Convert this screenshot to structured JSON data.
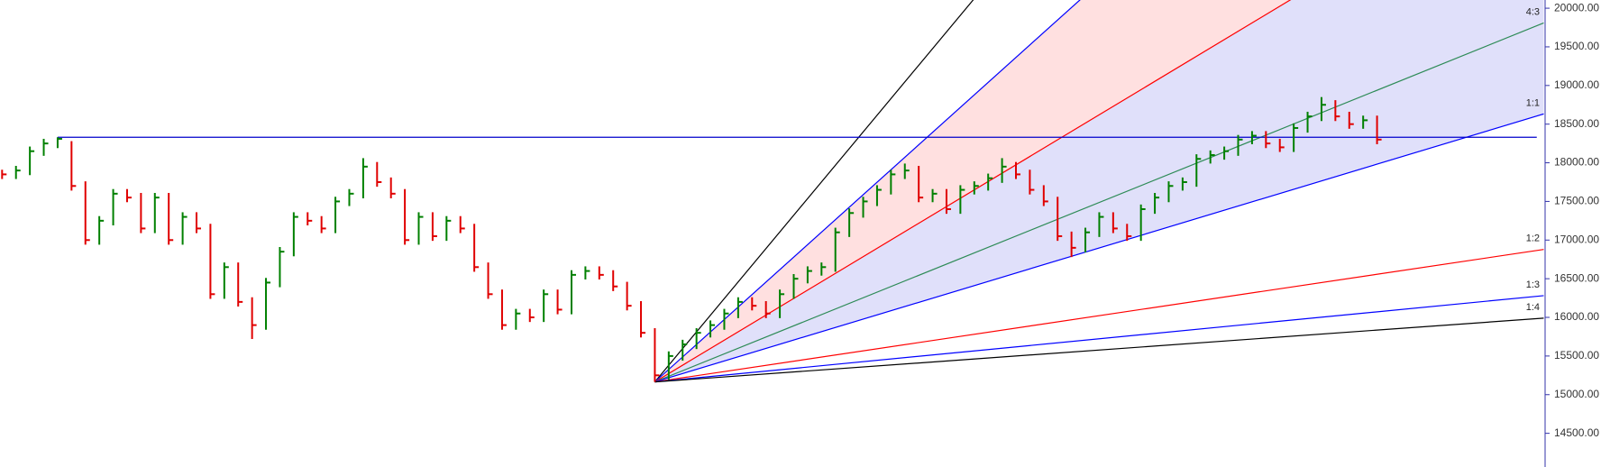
{
  "chart_data": {
    "type": "ohlc",
    "up_color": "#008000",
    "down_color": "#e00000",
    "xlim": [
      -0.15,
      111.1
    ],
    "ylim": [
      14064,
      20106
    ],
    "yticks": [
      {
        "value": 14500,
        "label": "14500.00"
      },
      {
        "value": 15000,
        "label": "15000.00"
      },
      {
        "value": 15500,
        "label": "15500.00"
      },
      {
        "value": 16000,
        "label": "16000.00"
      },
      {
        "value": 16500,
        "label": "16500.00"
      },
      {
        "value": 17000,
        "label": "17000.00"
      },
      {
        "value": 17500,
        "label": "17500.00"
      },
      {
        "value": 18000,
        "label": "18000.00"
      },
      {
        "value": 18500,
        "label": "18500.00"
      },
      {
        "value": 19000,
        "label": "19000.00"
      },
      {
        "value": 19500,
        "label": "19500.00"
      },
      {
        "value": 20000,
        "label": "20000.00"
      }
    ],
    "high": [
      17910,
      17960,
      18210,
      18310,
      18330,
      18280,
      17760,
      17310,
      17660,
      17660,
      17610,
      17610,
      17610,
      17360,
      17360,
      17210,
      16710,
      16710,
      16260,
      16510,
      16910,
      17360,
      17360,
      17310,
      17560,
      17660,
      18060,
      18010,
      17810,
      17660,
      17360,
      17360,
      17310,
      17310,
      17210,
      16710,
      16360,
      16110,
      16110,
      16360,
      16360,
      16610,
      16660,
      16660,
      16610,
      16460,
      16210,
      15860,
      15560,
      15710,
      15860,
      15960,
      16110,
      16260,
      16260,
      16210,
      16360,
      16560,
      16660,
      16710,
      17160,
      17410,
      17560,
      17710,
      17910,
      17990,
      17960,
      17660,
      17660,
      17710,
      17760,
      17860,
      18060,
      18010,
      17910,
      17710,
      17560,
      17110,
      17160,
      17360,
      17360,
      17210,
      17460,
      17610,
      17760,
      17810,
      18110,
      18160,
      18210,
      18360,
      18410,
      18410,
      18310,
      18510,
      18660,
      18850,
      18810,
      18660,
      18610,
      18610
    ],
    "low": [
      17790,
      17790,
      17840,
      18090,
      18190,
      17640,
      16940,
      16940,
      17190,
      17490,
      17090,
      17090,
      16940,
      16940,
      17090,
      16240,
      16240,
      16140,
      15720,
      15840,
      16390,
      16790,
      17190,
      17090,
      17090,
      17440,
      17540,
      17690,
      17540,
      16940,
      16940,
      16990,
      16990,
      17090,
      16590,
      16240,
      15840,
      15840,
      15940,
      15940,
      16040,
      16040,
      16490,
      16490,
      16340,
      16090,
      15740,
      15165,
      15190,
      15440,
      15590,
      15740,
      15840,
      15990,
      16090,
      15990,
      15990,
      16240,
      16440,
      16540,
      16590,
      17040,
      17290,
      17440,
      17590,
      17790,
      17490,
      17490,
      17340,
      17340,
      17590,
      17640,
      17740,
      17790,
      17590,
      17440,
      16990,
      16780,
      16840,
      17040,
      17090,
      16990,
      16990,
      17340,
      17490,
      17640,
      17690,
      17990,
      18040,
      18090,
      18240,
      18190,
      18140,
      18140,
      18390,
      18540,
      18540,
      18440,
      18440,
      18240
    ],
    "close": [
      17850,
      17900,
      18150,
      18250,
      18310,
      17700,
      17000,
      17250,
      17600,
      17550,
      17150,
      17550,
      17000,
      17300,
      17150,
      16300,
      16650,
      16200,
      15900,
      16450,
      16850,
      17300,
      17250,
      17150,
      17500,
      17600,
      17950,
      17750,
      17600,
      17000,
      17300,
      17050,
      17250,
      17150,
      16650,
      16300,
      15900,
      16050,
      16000,
      16300,
      16100,
      16550,
      16600,
      16550,
      16400,
      16150,
      15800,
      15250,
      15500,
      15650,
      15800,
      15900,
      16050,
      16200,
      16150,
      16050,
      16300,
      16500,
      16600,
      16650,
      17100,
      17350,
      17500,
      17650,
      17850,
      17900,
      17550,
      17600,
      17400,
      17650,
      17700,
      17800,
      17950,
      17850,
      17650,
      17500,
      17050,
      16900,
      17100,
      17300,
      17150,
      17050,
      17400,
      17550,
      17700,
      17750,
      18050,
      18100,
      18150,
      18300,
      18350,
      18250,
      18200,
      18450,
      18600,
      18750,
      18600,
      18500,
      18550,
      18300
    ],
    "horizontal_line": {
      "price": 18330,
      "start_index": 4,
      "end_index": 110.5,
      "color": "#0000cc"
    },
    "fan": {
      "origin": {
        "index": 47,
        "price": 15165
      },
      "end_index": 111,
      "fills": [
        "#ffe0e0",
        "#e0e0fa"
      ],
      "lines": [
        {
          "color": "#000000",
          "end_price": 28964
        },
        {
          "color": "#0000ff",
          "end_price": 25498
        },
        {
          "color": "#ff0000",
          "end_price": 22078
        },
        {
          "label": "4:3",
          "color": "#2e8b57",
          "end_price": 19809
        },
        {
          "label": "1:1",
          "color": "#0000ff",
          "end_price": 18632
        },
        {
          "label": "1:2",
          "color": "#ff0000",
          "end_price": 16879
        },
        {
          "label": "1:3",
          "color": "#0000ff",
          "end_price": 16281
        },
        {
          "label": "1:4",
          "color": "#000000",
          "end_price": 15990
        }
      ]
    }
  }
}
